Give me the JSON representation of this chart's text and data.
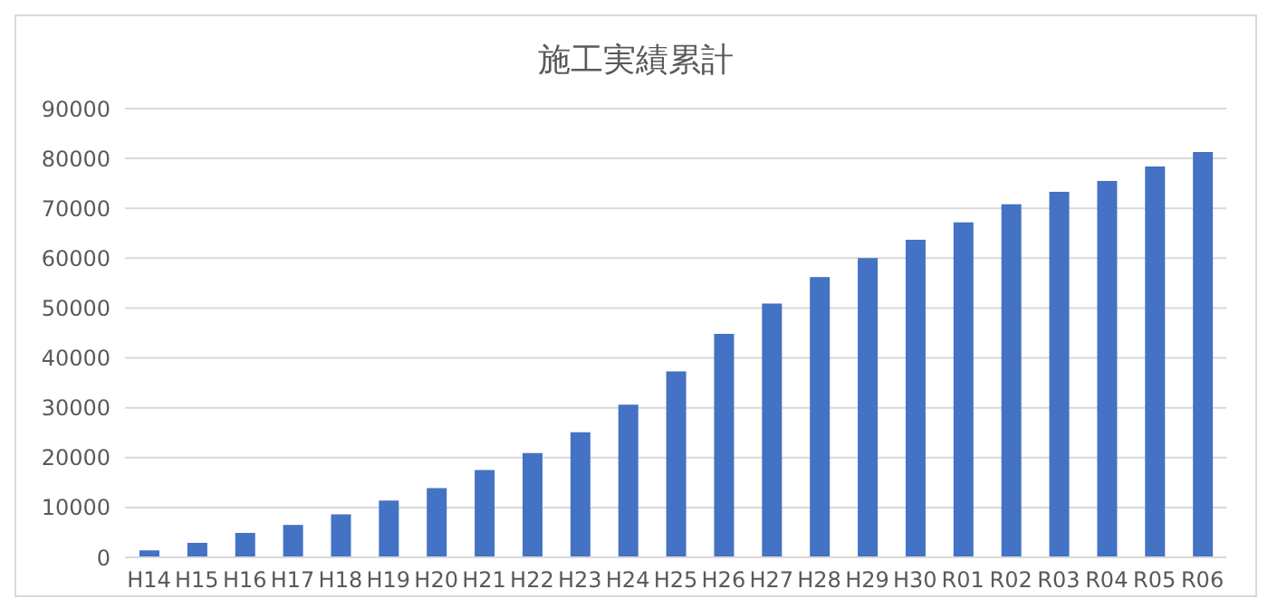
{
  "chart_data": {
    "type": "bar",
    "title": "施工実績累計",
    "categories": [
      "H14",
      "H15",
      "H16",
      "H17",
      "H18",
      "H19",
      "H20",
      "H21",
      "H22",
      "H23",
      "H24",
      "H25",
      "H26",
      "H27",
      "H28",
      "H29",
      "H30",
      "R01",
      "R02",
      "R03",
      "R04",
      "R05",
      "R06"
    ],
    "values": [
      1400,
      2900,
      4900,
      6500,
      8600,
      11400,
      13900,
      17500,
      20900,
      25100,
      30600,
      37300,
      44800,
      50900,
      56200,
      60000,
      63700,
      67200,
      70800,
      73300,
      75500,
      78400,
      81300
    ],
    "color": "#4472c4",
    "ylim": [
      0,
      90000
    ],
    "yticks": [
      0,
      10000,
      20000,
      30000,
      40000,
      50000,
      60000,
      70000,
      80000,
      90000
    ],
    "grid": "y",
    "legend": false
  }
}
